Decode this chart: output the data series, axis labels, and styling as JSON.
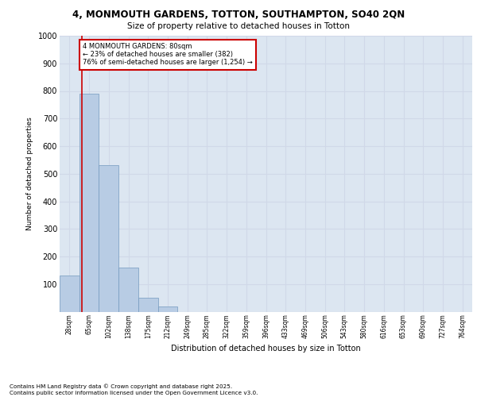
{
  "title_line1": "4, MONMOUTH GARDENS, TOTTON, SOUTHAMPTON, SO40 2QN",
  "title_line2": "Size of property relative to detached houses in Totton",
  "xlabel": "Distribution of detached houses by size in Totton",
  "ylabel": "Number of detached properties",
  "bins": [
    "28sqm",
    "65sqm",
    "102sqm",
    "138sqm",
    "175sqm",
    "212sqm",
    "249sqm",
    "285sqm",
    "322sqm",
    "359sqm",
    "396sqm",
    "433sqm",
    "469sqm",
    "506sqm",
    "543sqm",
    "580sqm",
    "616sqm",
    "653sqm",
    "690sqm",
    "727sqm",
    "764sqm"
  ],
  "bar_values": [
    130,
    790,
    530,
    160,
    50,
    20,
    0,
    0,
    0,
    0,
    0,
    0,
    0,
    0,
    0,
    0,
    0,
    0,
    0,
    0,
    0
  ],
  "bar_color": "#b8cce4",
  "bar_edge_color": "#7499be",
  "grid_color": "#d0d8e8",
  "background_color": "#dce6f1",
  "annotation_title": "4 MONMOUTH GARDENS: 80sqm",
  "annotation_line1": "← 23% of detached houses are smaller (382)",
  "annotation_line2": "76% of semi-detached houses are larger (1,254) →",
  "annotation_box_edgecolor": "#cc0000",
  "property_line_color": "#cc0000",
  "ylim": [
    0,
    1000
  ],
  "yticks": [
    0,
    100,
    200,
    300,
    400,
    500,
    600,
    700,
    800,
    900,
    1000
  ],
  "footer_line1": "Contains HM Land Registry data © Crown copyright and database right 2025.",
  "footer_line2": "Contains public sector information licensed under the Open Government Licence v3.0."
}
